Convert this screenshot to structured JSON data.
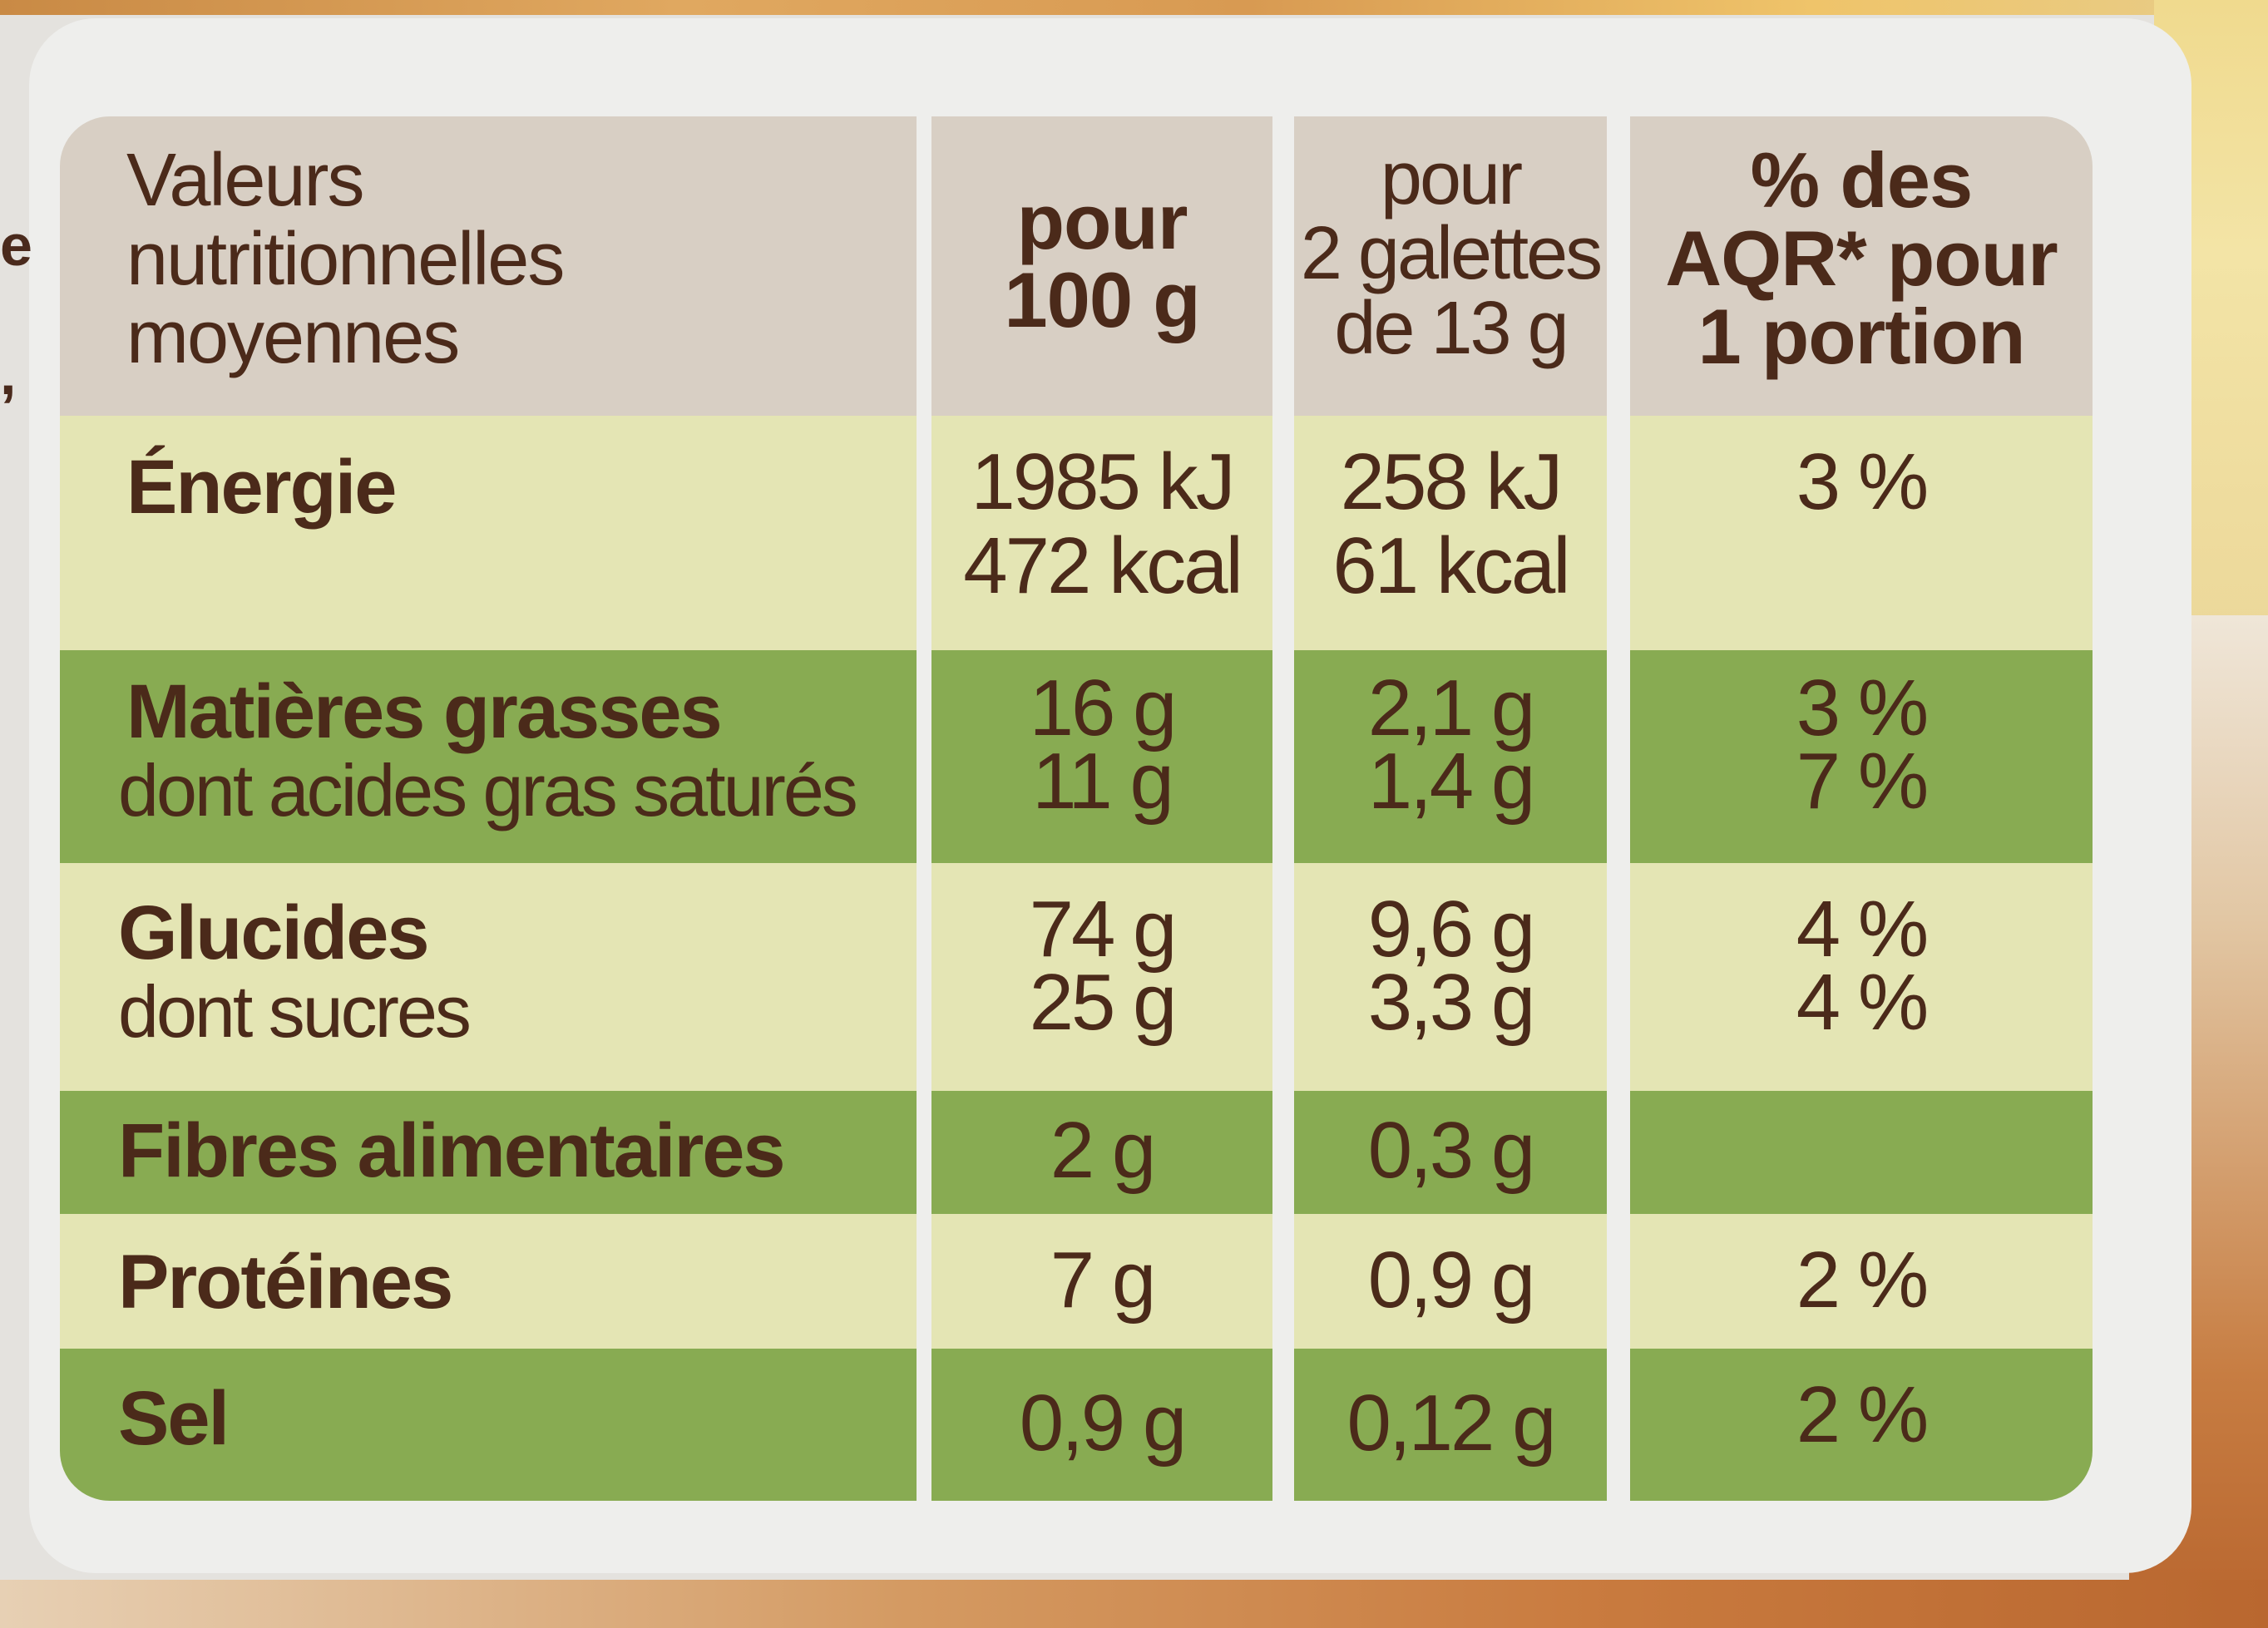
{
  "left_edge_fragments": [
    "e",
    ","
  ],
  "table": {
    "header": {
      "name": [
        "Valeurs",
        "nutritionnelles",
        "moyennes"
      ],
      "per_100g": [
        "pour",
        "100 g"
      ],
      "per_portion": [
        "pour",
        "2 galettes",
        "de 13 g"
      ],
      "aqr": [
        "% des",
        "AQR* pour",
        "1 portion"
      ]
    },
    "rows": [
      {
        "name_main": "Énergie",
        "name_sub": "",
        "per_100g": [
          "1985 kJ",
          "472 kcal"
        ],
        "per_portion": [
          "258 kJ",
          "61 kcal"
        ],
        "aqr": [
          "3 %"
        ]
      },
      {
        "name_main": "Matières grasses",
        "name_sub": "dont acides gras saturés",
        "per_100g": [
          "16 g",
          "11 g"
        ],
        "per_portion": [
          "2,1 g",
          "1,4 g"
        ],
        "aqr": [
          "3 %",
          "7 %"
        ]
      },
      {
        "name_main": "Glucides",
        "name_sub": "dont sucres",
        "per_100g": [
          "74 g",
          "25 g"
        ],
        "per_portion": [
          "9,6 g",
          "3,3 g"
        ],
        "aqr": [
          "4 %",
          "4 %"
        ]
      },
      {
        "name_main": "Fibres alimentaires",
        "name_sub": "",
        "per_100g": [
          "2 g"
        ],
        "per_portion": [
          "0,3 g"
        ],
        "aqr": [
          ""
        ]
      },
      {
        "name_main": "Protéines",
        "name_sub": "",
        "per_100g": [
          "7 g"
        ],
        "per_portion": [
          "0,9 g"
        ],
        "aqr": [
          "2 %"
        ]
      },
      {
        "name_main": "Sel",
        "name_sub": "",
        "per_100g": [
          "0,9 g"
        ],
        "per_portion": [
          "0,12 g"
        ],
        "aqr": [
          "2 %"
        ]
      }
    ]
  },
  "colors": {
    "header_bg": "#d8cfc4",
    "light_row_bg": "#e4e5b4",
    "green_row_bg": "#88ab52",
    "text": "#4b2a1a",
    "panel": "#eeeeec"
  }
}
